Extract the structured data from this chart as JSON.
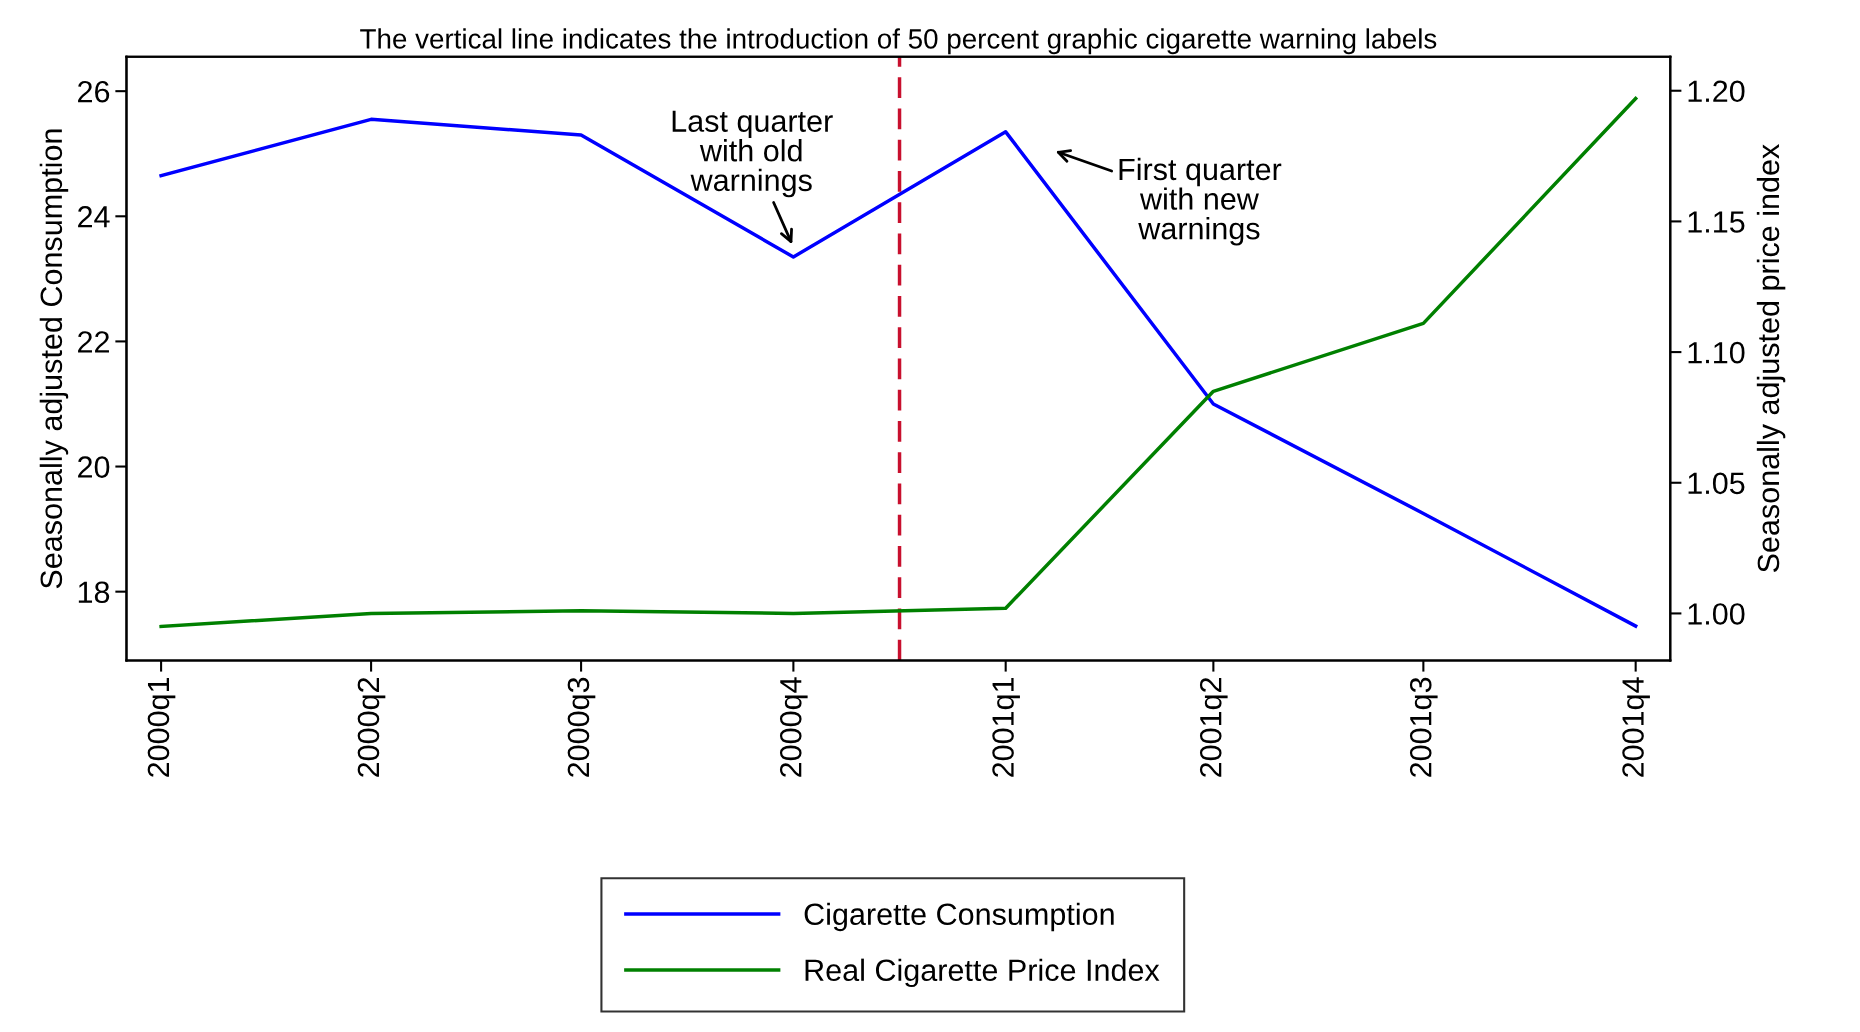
{
  "chart_data": {
    "type": "line",
    "title": "The vertical line indicates the introduction of 50 percent graphic cigarette warning labels",
    "x": [
      "2000-01",
      "2000-04",
      "2000-07",
      "2000-10",
      "2001-01",
      "2001-04",
      "2001-07",
      "2001-10"
    ],
    "xlim": [
      "1999-12-17",
      "2001-10-16"
    ],
    "xticks": [
      {
        "value": "2000-01",
        "label": "2000q1"
      },
      {
        "value": "2000-04",
        "label": "2000q2"
      },
      {
        "value": "2000-07",
        "label": "2000q3"
      },
      {
        "value": "2000-10",
        "label": "2000q4"
      },
      {
        "value": "2001-01",
        "label": "2001q1"
      },
      {
        "value": "2001-04",
        "label": "2001q2"
      },
      {
        "value": "2001-07",
        "label": "2001q3"
      },
      {
        "value": "2001-10",
        "label": "2001q4"
      }
    ],
    "ref_lines": [
      {
        "axis": "x",
        "value": "2000-11-16",
        "color": "#c8102e",
        "line_style": "dashed"
      }
    ],
    "ylabel": "Seasonally adjusted Consumption",
    "y2label": "Seasonally adjusted price index",
    "ylim": [
      16.9,
      26.55
    ],
    "yticks": [
      18,
      20,
      22,
      24,
      26
    ],
    "y2lim": [
      0.982,
      1.213
    ],
    "y2ticks": [
      {
        "value": 1.0,
        "label": "1.00"
      },
      {
        "value": 1.05,
        "label": "1.05"
      },
      {
        "value": 1.1,
        "label": "1.10"
      },
      {
        "value": 1.15,
        "label": "1.15"
      },
      {
        "value": 1.2,
        "label": "1.20"
      }
    ],
    "series": [
      {
        "name": "Cigarette Consumption",
        "color": "#0000ff",
        "values": [
          24.65,
          25.55,
          25.3,
          23.35,
          25.35,
          21.0,
          19.25,
          17.45
        ]
      },
      {
        "name": "Real Cigarette Price Index",
        "color": "#008000",
        "axis": "y2",
        "values": [
          0.995,
          1.0,
          1.001,
          1.0,
          1.002,
          1.085,
          1.111,
          1.197
        ]
      }
    ],
    "annotations": [
      "Last quarter\nwith old\nwarnings",
      "First quarter\nwith new\nwarnings"
    ],
    "legend": "bottom",
    "grid": false
  }
}
